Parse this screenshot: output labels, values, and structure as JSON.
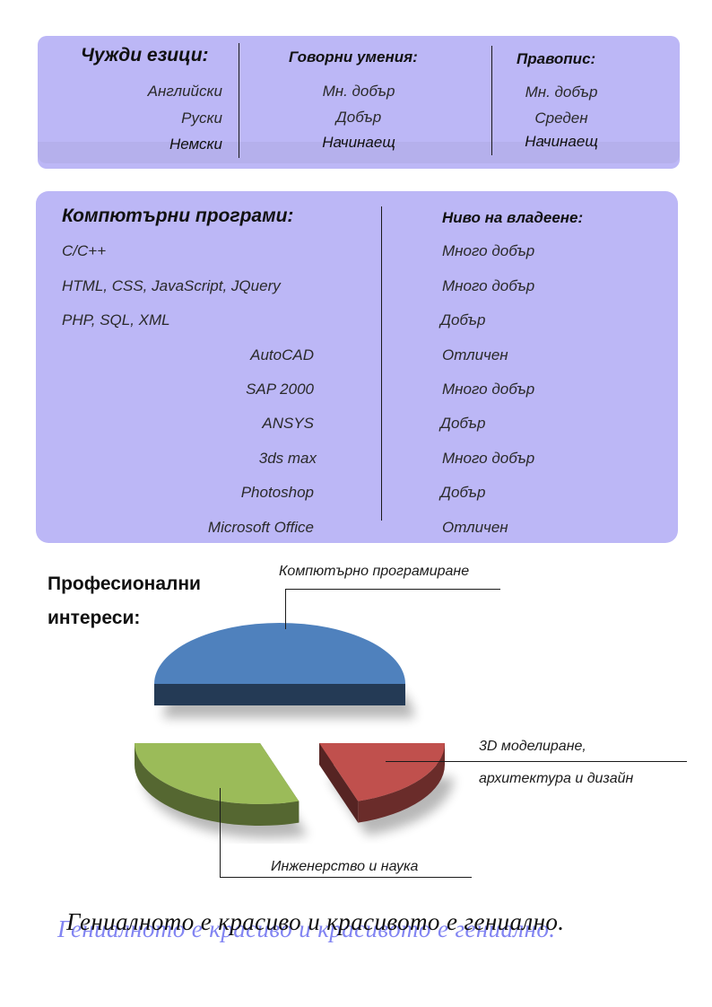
{
  "languages": {
    "col1_title": "Чужди езици:",
    "col2_title": "Говорни умения:",
    "col3_title": "Правопис:",
    "rows": [
      {
        "language": "Английски",
        "speaking": "Мн. добър",
        "writing": "Мн. добър"
      },
      {
        "language": "Руски",
        "speaking": "Добър",
        "writing": "Среден"
      },
      {
        "language": "Немски",
        "speaking": "Начинаещ",
        "writing": "Начинаещ"
      }
    ]
  },
  "software": {
    "title": "Компютърни програми:",
    "level_title": "Ниво на владеене:",
    "rows": [
      {
        "name": "C/C++",
        "level": "Много добър"
      },
      {
        "name": "HTML, CSS, JavaScript, JQuery",
        "level": "Много добър"
      },
      {
        "name": "PHP, SQL, XML",
        "level": "Добър"
      },
      {
        "name": "AutoCAD",
        "level": "Отличен"
      },
      {
        "name": "SAP 2000",
        "level": "Много добър"
      },
      {
        "name": "ANSYS",
        "level": "Добър"
      },
      {
        "name": "3ds max",
        "level": "Много добър"
      },
      {
        "name": "Photoshop",
        "level": "Добър"
      },
      {
        "name": "Microsoft Office",
        "level": "Отличен"
      }
    ]
  },
  "interests": {
    "title_line1": "Професионални",
    "title_line2": "интереси:",
    "colors": {
      "programming": "#4f81bd",
      "modeling": "#c0504d",
      "engineering": "#9bbb59"
    },
    "labels": {
      "programming": "Компютърно програмиране",
      "modeling_line1": "3D моделиране,",
      "modeling_line2": "архитектура и дизайн",
      "engineering": "Инженерство и наука"
    }
  },
  "chart_data": {
    "type": "pie",
    "categories": [
      "Компютърно програмиране",
      "3D моделиране, архитектура и дизайн",
      "Инженерство и наука"
    ],
    "values": [
      50,
      20,
      30
    ],
    "legend": "none"
  },
  "motto": "Гениалното е красиво и красивото е гениално."
}
